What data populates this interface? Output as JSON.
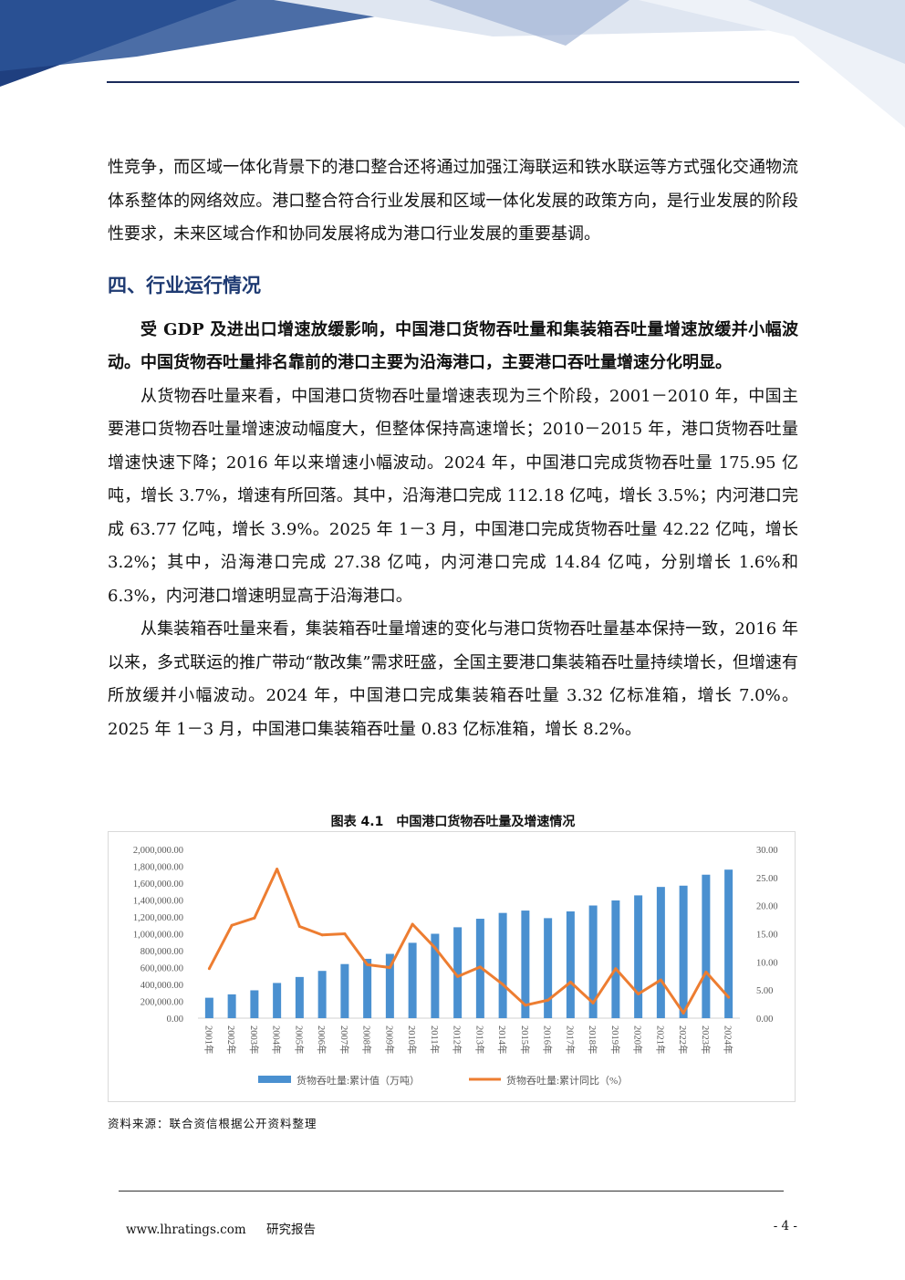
{
  "body": {
    "p1": "性竞争，而区域一体化背景下的港口整合还将通过加强江海联运和铁水联运等方式强化交通物流体系整体的网络效应。港口整合符合行业发展和区域一体化发展的政策方向，是行业发展的阶段性要求，未来区域合作和协同发展将成为港口行业发展的重要基调。",
    "heading": "四、行业运行情况",
    "p_bold": "受 GDP 及进出口增速放缓影响，中国港口货物吞吐量和集装箱吞吐量增速放缓并小幅波动。中国货物吞吐量排名靠前的港口主要为沿海港口，主要港口吞吐量增速分化明显。",
    "p2": "从货物吞吐量来看，中国港口货物吞吐量增速表现为三个阶段，2001－2010 年，中国主要港口货物吞吐量增速波动幅度大，但整体保持高速增长；2010－2015 年，港口货物吞吐量增速快速下降；2016 年以来增速小幅波动。2024 年，中国港口完成货物吞吐量 175.95 亿吨，增长 3.7%，增速有所回落。其中，沿海港口完成 112.18 亿吨，增长 3.5%；内河港口完成 63.77 亿吨，增长 3.9%。2025 年 1－3 月，中国港口完成货物吞吐量 42.22 亿吨，增长 3.2%；其中，沿海港口完成 27.38 亿吨，内河港口完成 14.84 亿吨，分别增长 1.6%和 6.3%，内河港口增速明显高于沿海港口。",
    "p3": "从集装箱吞吐量来看，集装箱吞吐量增速的变化与港口货物吞吐量基本保持一致，2016 年以来，多式联运的推广带动“散改集”需求旺盛，全国主要港口集装箱吞吐量持续增长，但增速有所放缓并小幅波动。2024 年，中国港口完成集装箱吞吐量 3.32 亿标准箱，增长 7.0%。2025 年 1－3 月，中国港口集装箱吞吐量 0.83 亿标准箱，增长 8.2%。"
  },
  "figure": {
    "caption": "图表 4.1　中国港口货物吞吐量及增速情况",
    "source": "资料来源：联合资信根据公开资料整理"
  },
  "chart_data": {
    "type": "bar",
    "categories": [
      "2001年",
      "2002年",
      "2003年",
      "2004年",
      "2005年",
      "2006年",
      "2007年",
      "2008年",
      "2009年",
      "2010年",
      "2011年",
      "2012年",
      "2013年",
      "2014年",
      "2015年",
      "2016年",
      "2017年",
      "2018年",
      "2019年",
      "2020年",
      "2021年",
      "2022年",
      "2023年",
      "2024年"
    ],
    "series": [
      {
        "name": "货物吞吐量:累计值（万吨）",
        "kind": "bar",
        "axis": "left",
        "color": "#4a90d0",
        "values": [
          242000,
          282000,
          330000,
          417000,
          488000,
          560000,
          641000,
          703000,
          762000,
          893000,
          1000000,
          1077000,
          1178000,
          1247000,
          1275000,
          1185000,
          1265000,
          1335000,
          1395000,
          1455000,
          1555000,
          1570000,
          1700000,
          1760000
        ]
      },
      {
        "name": "货物吞吐量:累计同比（%）",
        "kind": "line",
        "axis": "right",
        "color": "#ed7d31",
        "values": [
          8.8,
          16.5,
          17.8,
          26.5,
          16.3,
          14.8,
          15.0,
          9.5,
          9.0,
          16.7,
          12.5,
          7.4,
          9.1,
          6.0,
          2.3,
          3.2,
          6.4,
          2.7,
          8.8,
          4.3,
          6.8,
          0.9,
          8.2,
          3.7
        ]
      }
    ],
    "yleft": {
      "min": 0,
      "max": 2000000,
      "step": 200000,
      "ticks": [
        "0.00",
        "200,000.00",
        "400,000.00",
        "600,000.00",
        "800,000.00",
        "1,000,000.00",
        "1,200,000.00",
        "1,400,000.00",
        "1,600,000.00",
        "1,800,000.00",
        "2,000,000.00"
      ]
    },
    "yright": {
      "min": 0,
      "max": 30,
      "step": 5,
      "ticks": [
        "0.00",
        "5.00",
        "10.00",
        "15.00",
        "20.00",
        "25.00",
        "30.00"
      ]
    },
    "legend": "bottom",
    "grid": false
  },
  "footer": {
    "url": "www.lhratings.com",
    "label": "研究报告",
    "page": "- 4 -"
  }
}
